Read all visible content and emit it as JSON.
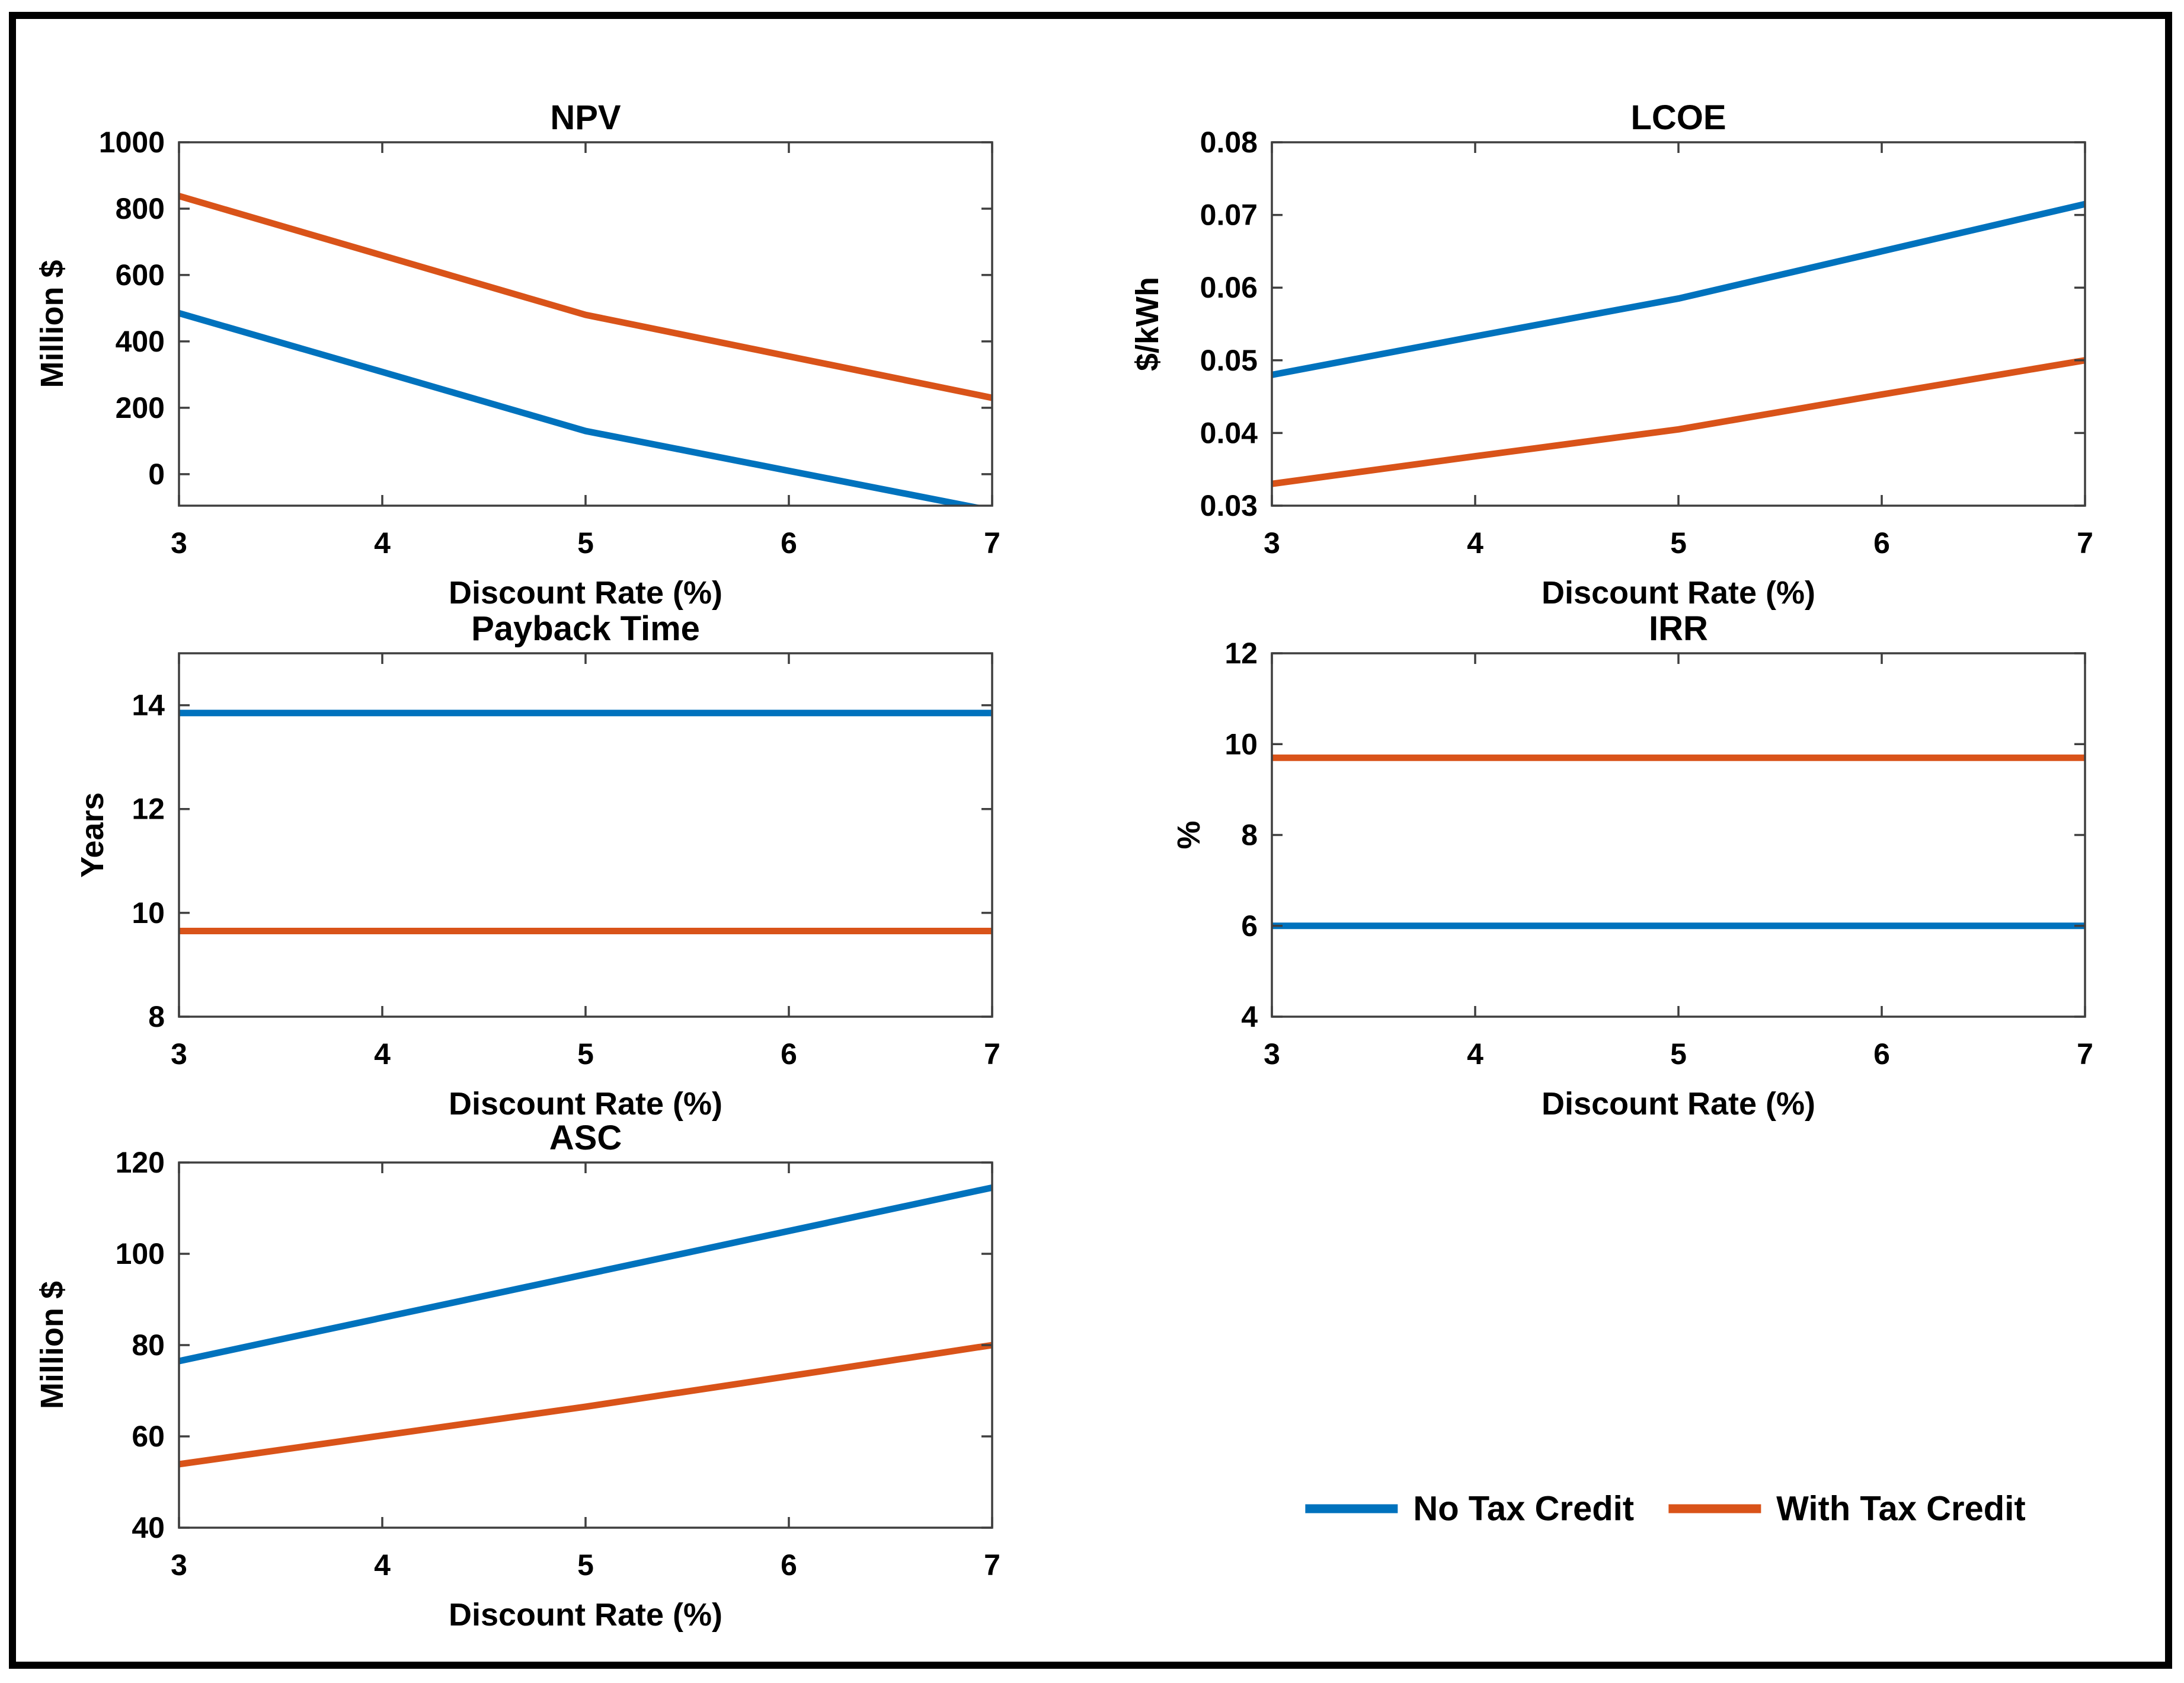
{
  "figure": {
    "background_color": "#ffffff",
    "border_color": "#000000",
    "axes_color": "#3f3f3f",
    "series_colors": {
      "no_tax_credit": "#0072BD",
      "with_tax_credit": "#D95319"
    }
  },
  "legend": {
    "position": "bottom-right-cell",
    "items": [
      {
        "label": "No Tax Credit",
        "color": "#0072BD"
      },
      {
        "label": "With Tax Credit",
        "color": "#D95319"
      }
    ]
  },
  "chart_data": [
    {
      "type": "line",
      "title": "NPV",
      "xlabel": "Discount Rate (%)",
      "ylabel": "Million $",
      "grid": {
        "row": 1,
        "col": 1
      },
      "x": [
        3,
        4,
        5,
        6,
        7
      ],
      "xlim": [
        3,
        7
      ],
      "ylim": [
        -95,
        1000
      ],
      "xticks": [
        3,
        4,
        5,
        6,
        7
      ],
      "xticklabels": [
        "3",
        "4",
        "5",
        "6",
        "7"
      ],
      "yticks": [
        0,
        200,
        400,
        600,
        800,
        1000
      ],
      "yticklabels": [
        "0",
        "200",
        "400",
        "600",
        "800",
        "1000"
      ],
      "grid_lines": false,
      "series": [
        {
          "name": "No Tax Credit",
          "color": "#0072BD",
          "values": [
            485,
            308,
            130,
            10,
            -110
          ]
        },
        {
          "name": "With Tax Credit",
          "color": "#D95319",
          "values": [
            838,
            659,
            480,
            355,
            230
          ]
        }
      ]
    },
    {
      "type": "line",
      "title": "LCOE",
      "xlabel": "Discount Rate (%)",
      "ylabel": "$/kWh",
      "grid": {
        "row": 1,
        "col": 2
      },
      "x": [
        3,
        4,
        5,
        6,
        7
      ],
      "xlim": [
        3,
        7
      ],
      "ylim": [
        0.03,
        0.08
      ],
      "xticks": [
        3,
        4,
        5,
        6,
        7
      ],
      "xticklabels": [
        "3",
        "4",
        "5",
        "6",
        "7"
      ],
      "yticks": [
        0.03,
        0.04,
        0.05,
        0.06,
        0.07,
        0.08
      ],
      "yticklabels": [
        "0.03",
        "0.04",
        "0.05",
        "0.06",
        "0.07",
        "0.08"
      ],
      "grid_lines": false,
      "series": [
        {
          "name": "No Tax Credit",
          "color": "#0072BD",
          "values": [
            0.048,
            0.0533,
            0.0585,
            0.065,
            0.0715
          ]
        },
        {
          "name": "With Tax Credit",
          "color": "#D95319",
          "values": [
            0.033,
            0.0368,
            0.0405,
            0.0453,
            0.05
          ]
        }
      ]
    },
    {
      "type": "line",
      "title": "Payback Time",
      "xlabel": "Discount Rate (%)",
      "ylabel": "Years",
      "grid": {
        "row": 2,
        "col": 1
      },
      "x": [
        3,
        4,
        5,
        6,
        7
      ],
      "xlim": [
        3,
        7
      ],
      "ylim": [
        8,
        15
      ],
      "xticks": [
        3,
        4,
        5,
        6,
        7
      ],
      "xticklabels": [
        "3",
        "4",
        "5",
        "6",
        "7"
      ],
      "yticks": [
        8,
        10,
        12,
        14
      ],
      "yticklabels": [
        "8",
        "10",
        "12",
        "14"
      ],
      "grid_lines": false,
      "series": [
        {
          "name": "No Tax Credit",
          "color": "#0072BD",
          "values": [
            13.85,
            13.85,
            13.85,
            13.85,
            13.85
          ]
        },
        {
          "name": "With Tax Credit",
          "color": "#D95319",
          "values": [
            9.65,
            9.65,
            9.65,
            9.65,
            9.65
          ]
        }
      ]
    },
    {
      "type": "line",
      "title": "IRR",
      "xlabel": "Discount Rate (%)",
      "ylabel": "%",
      "grid": {
        "row": 2,
        "col": 2
      },
      "x": [
        3,
        4,
        5,
        6,
        7
      ],
      "xlim": [
        3,
        7
      ],
      "ylim": [
        4,
        12
      ],
      "xticks": [
        3,
        4,
        5,
        6,
        7
      ],
      "xticklabels": [
        "3",
        "4",
        "5",
        "6",
        "7"
      ],
      "yticks": [
        4,
        6,
        8,
        10,
        12
      ],
      "yticklabels": [
        "4",
        "6",
        "8",
        "10",
        "12"
      ],
      "grid_lines": false,
      "series": [
        {
          "name": "No Tax Credit",
          "color": "#0072BD",
          "values": [
            6,
            6,
            6,
            6,
            6
          ]
        },
        {
          "name": "With Tax Credit",
          "color": "#D95319",
          "values": [
            9.7,
            9.7,
            9.7,
            9.7,
            9.7
          ]
        }
      ]
    },
    {
      "type": "line",
      "title": "ASC",
      "xlabel": "Discount Rate (%)",
      "ylabel": "Million $",
      "grid": {
        "row": 3,
        "col": 1
      },
      "x": [
        3,
        4,
        5,
        6,
        7
      ],
      "xlim": [
        3,
        7
      ],
      "ylim": [
        40,
        120
      ],
      "xticks": [
        3,
        4,
        5,
        6,
        7
      ],
      "xticklabels": [
        "3",
        "4",
        "5",
        "6",
        "7"
      ],
      "yticks": [
        40,
        60,
        80,
        100,
        120
      ],
      "yticklabels": [
        "40",
        "60",
        "80",
        "100",
        "120"
      ],
      "grid_lines": false,
      "series": [
        {
          "name": "No Tax Credit",
          "color": "#0072BD",
          "values": [
            76.5,
            86,
            95.5,
            105,
            114.5
          ]
        },
        {
          "name": "With Tax Credit",
          "color": "#D95319",
          "values": [
            53.9,
            60.2,
            66.5,
            73.2,
            80
          ]
        }
      ]
    }
  ]
}
